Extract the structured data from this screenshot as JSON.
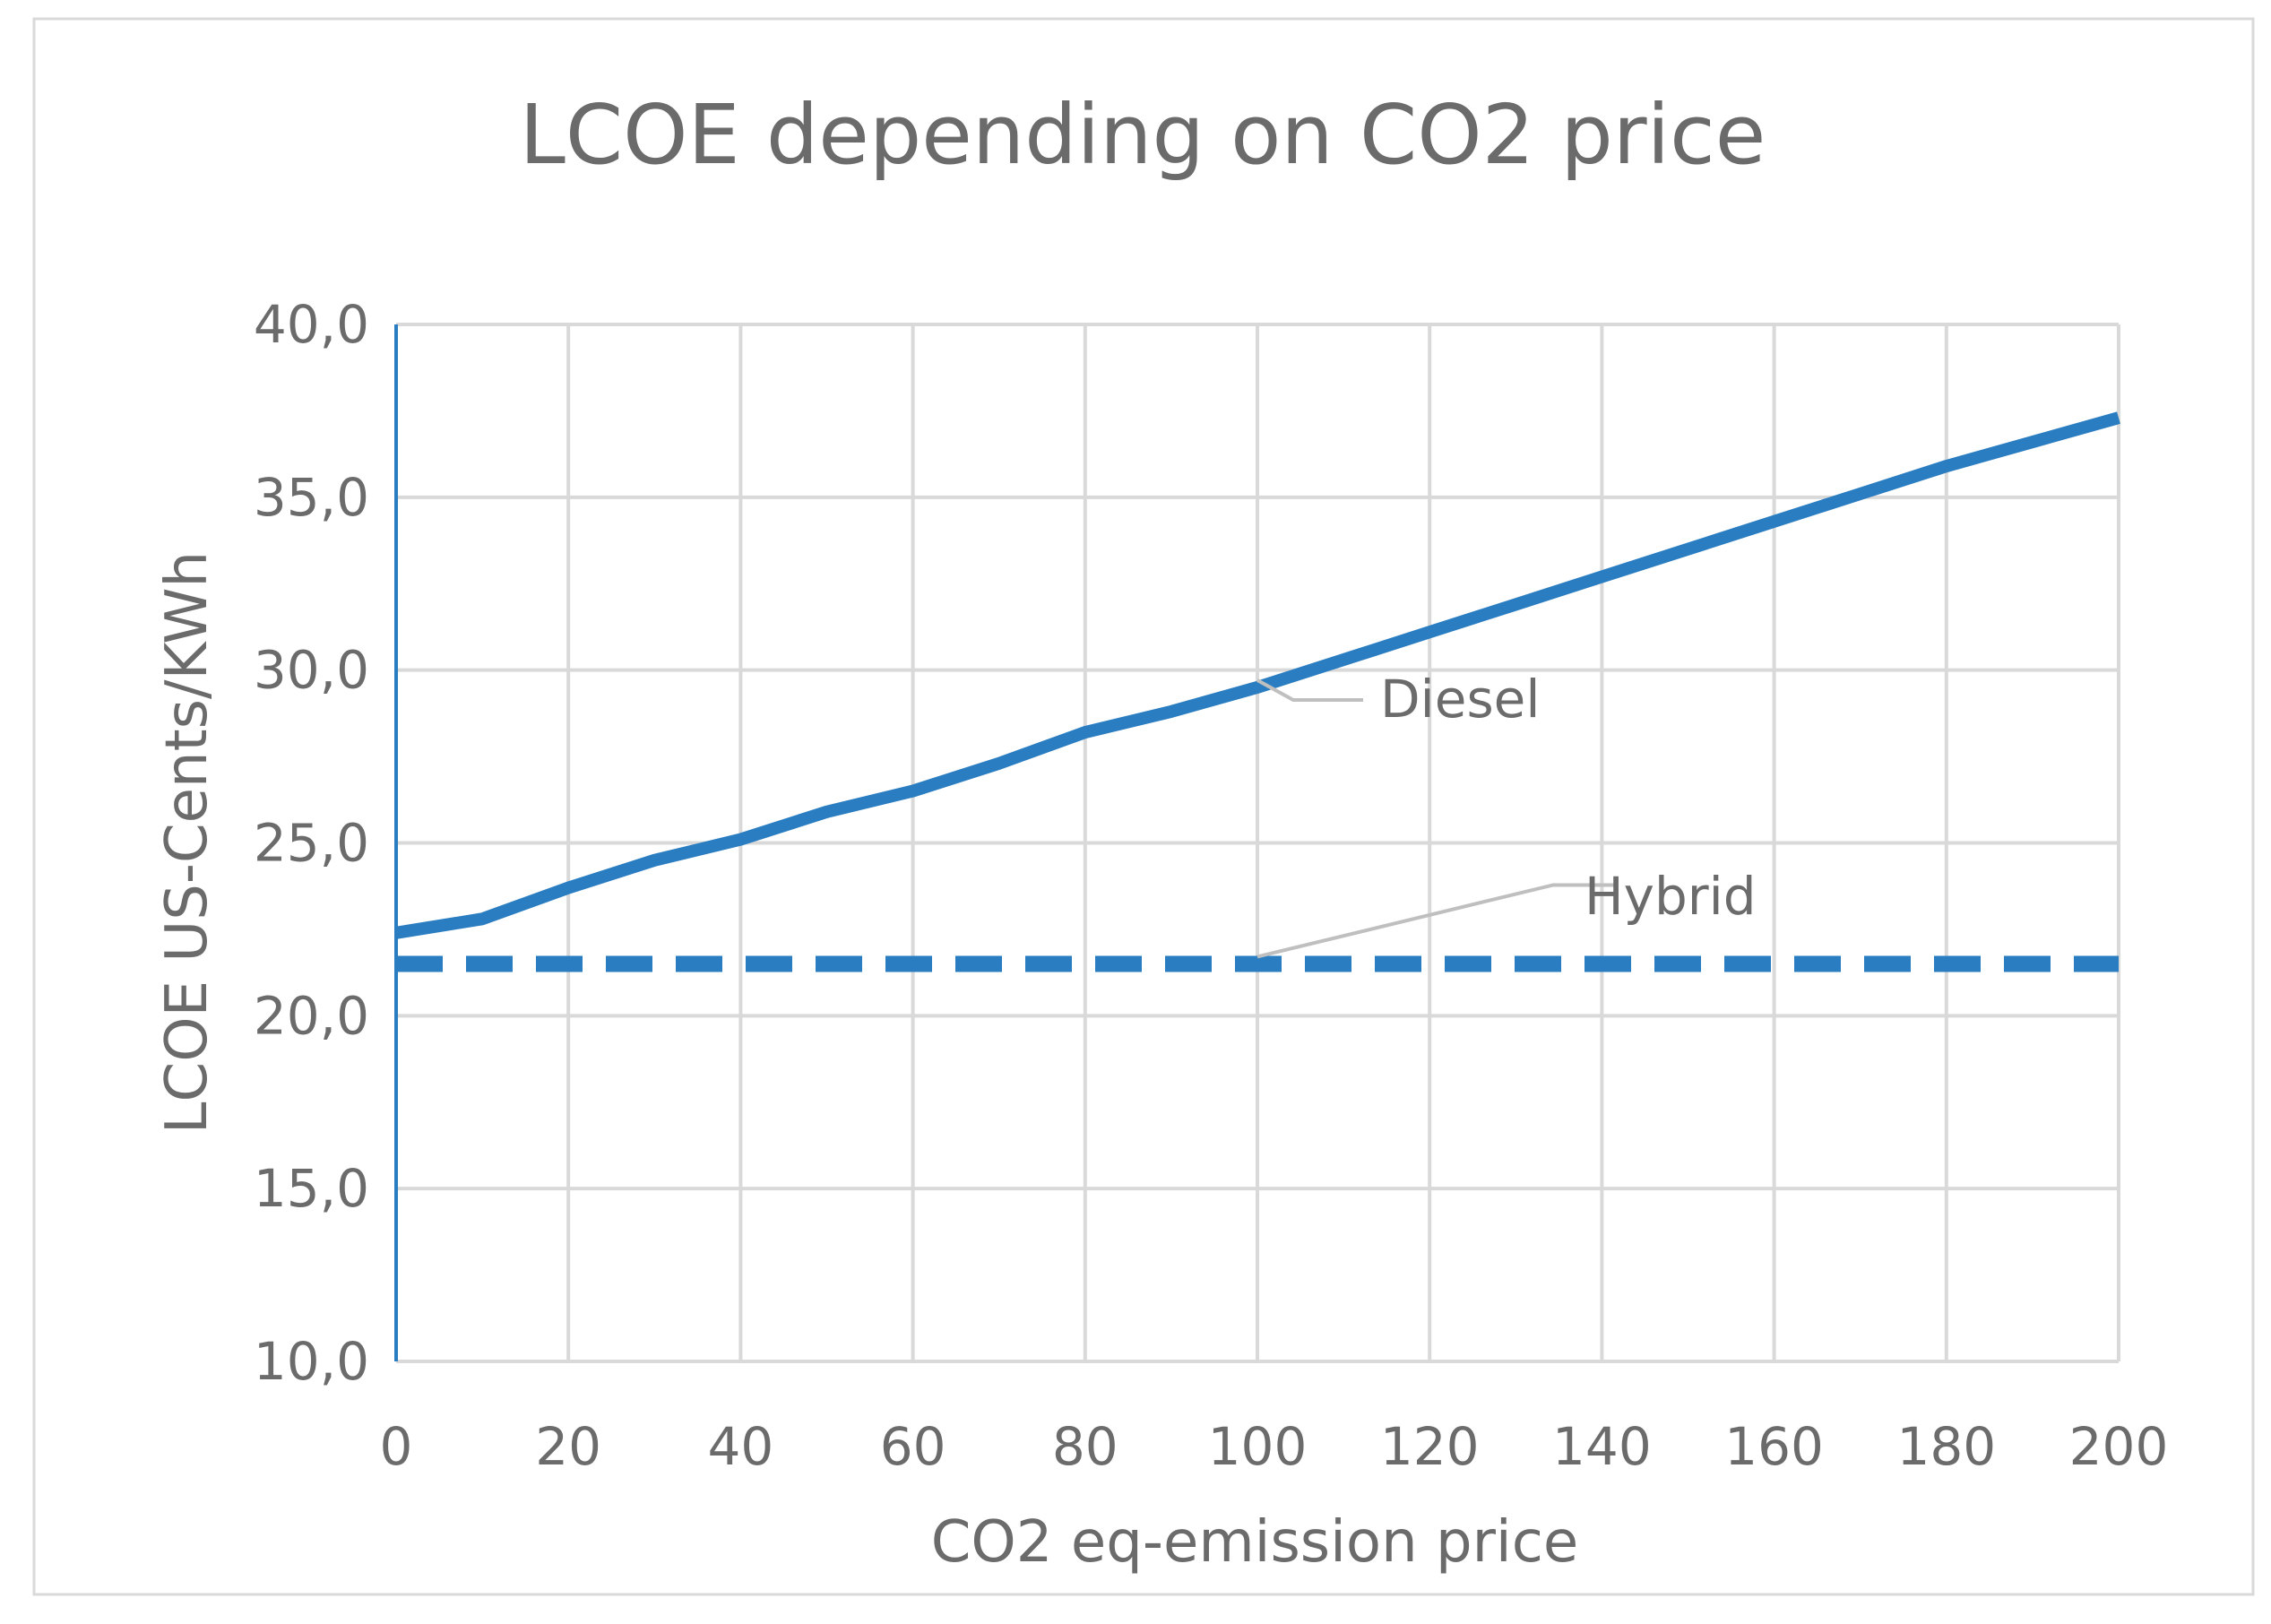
{
  "chart_data": {
    "type": "line",
    "title": "LCOE depending on CO2 price",
    "xlabel": "CO2 eq-emission price",
    "ylabel": "LCOE US-Cents/KWh",
    "xlim": [
      0,
      200
    ],
    "ylim": [
      10,
      40
    ],
    "x_ticks": [
      0,
      20,
      40,
      60,
      80,
      100,
      120,
      140,
      160,
      180,
      200
    ],
    "x_tick_labels": [
      "0",
      "20",
      "40",
      "60",
      "80",
      "100",
      "120",
      "140",
      "160",
      "180",
      "200"
    ],
    "y_ticks": [
      10,
      15,
      20,
      25,
      30,
      35,
      40
    ],
    "y_tick_labels": [
      "10,0",
      "15,0",
      "20,0",
      "25,0",
      "30,0",
      "35,0",
      "40,0"
    ],
    "grid": true,
    "colors": {
      "series": "#2a7dc0",
      "grid": "#d9d9d9",
      "text": "#6b6b6b",
      "leader": "#bfbfbf",
      "frame": "#d9d9d9"
    },
    "series": [
      {
        "name": "Diesel",
        "style": "solid",
        "x": [
          0,
          10,
          20,
          30,
          40,
          50,
          60,
          70,
          80,
          90,
          100,
          110,
          120,
          130,
          140,
          150,
          160,
          170,
          180,
          190,
          200
        ],
        "values": [
          22.4,
          22.8,
          23.7,
          24.5,
          25.1,
          25.9,
          26.5,
          27.3,
          28.2,
          28.8,
          29.5,
          30.3,
          31.1,
          31.9,
          32.7,
          33.5,
          34.3,
          35.1,
          35.9,
          36.6,
          37.3
        ]
      },
      {
        "name": "Hybrid",
        "style": "dashed",
        "x": [
          0,
          20,
          40,
          60,
          80,
          100,
          120,
          140,
          160,
          180,
          200
        ],
        "values": [
          21.5,
          21.5,
          21.5,
          21.5,
          21.5,
          21.5,
          21.5,
          21.5,
          21.5,
          21.5,
          21.5
        ]
      }
    ],
    "annotations": [
      {
        "text": "Diesel",
        "series": "Diesel",
        "anchor_x": 100
      },
      {
        "text": "Hybrid",
        "series": "Hybrid",
        "anchor_x": 100
      }
    ]
  }
}
